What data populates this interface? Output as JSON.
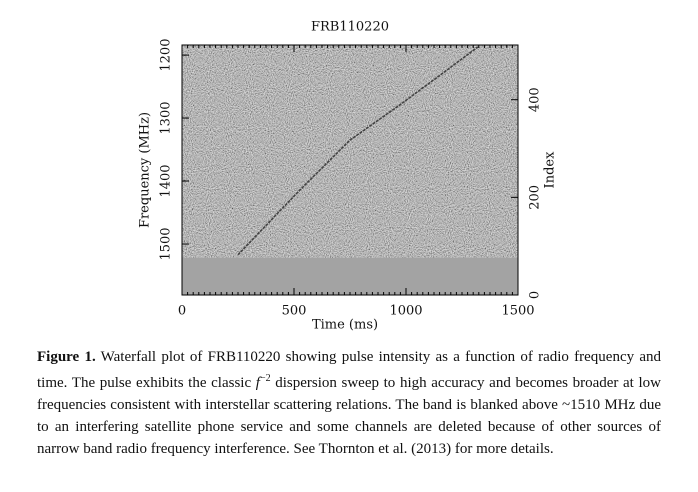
{
  "chart_data": {
    "type": "waterfall",
    "title": "FRB110220",
    "xlabel": "Time (ms)",
    "ylabel": "Frequency (MHz)",
    "y2label": "Index",
    "xlim": [
      0,
      1500
    ],
    "xticks": [
      0,
      500,
      1000,
      1500
    ],
    "ylim": [
      1581,
      1184
    ],
    "yticks": [
      1200,
      1300,
      1400,
      1500
    ],
    "y2lim": [
      0,
      512
    ],
    "y2ticks": [
      0,
      200,
      400
    ],
    "blanked_band": [
      1522,
      1581
    ],
    "series": [
      {
        "name": "pulse",
        "color": "#2e2e2e",
        "x": [
          250,
          527,
          750,
          973,
          1152,
          1321
        ],
        "values": [
          1517,
          1414,
          1335,
          1279,
          1232,
          1187
        ]
      }
    ]
  },
  "caption": {
    "label": "Figure 1.",
    "parts": [
      "Waterfall plot of FRB110220 showing pulse intensity as a function of radio frequency and time.  The pulse exhibits the classic ",
      "f",
      "−2",
      " dispersion sweep to high accuracy and becomes broader at low frequencies consistent with interstellar scattering relations. The band is blanked above ~1510 MHz due to an interfering satellite phone service and some channels are deleted because of other sources of narrow band radio frequency interference.  See Thornton et al. (2013) for more details."
    ]
  }
}
